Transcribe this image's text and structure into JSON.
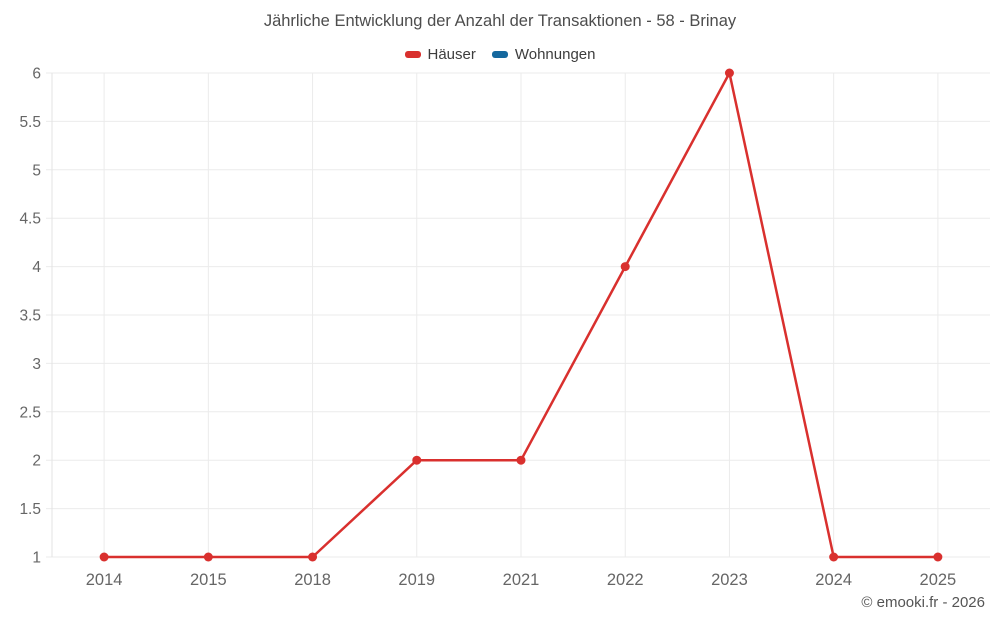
{
  "footer": "© emooki.fr - 2026",
  "colors": {
    "background": "#ffffff",
    "grid": "#ebebeb",
    "axis": "#e3e3e3",
    "tick_text": "#666666",
    "title_text": "#4d4d4d",
    "legend_text": "#3d3d3d",
    "footer_text": "#555555",
    "series_hauser": "#d9302e",
    "series_wohnungen": "#15689e"
  },
  "chart_data": {
    "type": "line",
    "title": "Jährliche Entwicklung der Anzahl der Transaktionen - 58 - Brinay",
    "categories": [
      "2014",
      "2015",
      "2018",
      "2019",
      "2021",
      "2022",
      "2023",
      "2024",
      "2025"
    ],
    "series": [
      {
        "name": "Häuser",
        "color": "#d9302e",
        "values": [
          1,
          1,
          1,
          2,
          2,
          4,
          6,
          1,
          1
        ]
      },
      {
        "name": "Wohnungen",
        "color": "#15689e",
        "values": []
      }
    ],
    "xlabel": "",
    "ylabel": "",
    "ylim": [
      1,
      6
    ],
    "ytick_step": 0.5,
    "yticks": [
      "1",
      "1.5",
      "2",
      "2.5",
      "3",
      "3.5",
      "4",
      "4.5",
      "5",
      "5.5",
      "6"
    ],
    "grid": true,
    "legend_position": "top",
    "marker": "circle"
  }
}
